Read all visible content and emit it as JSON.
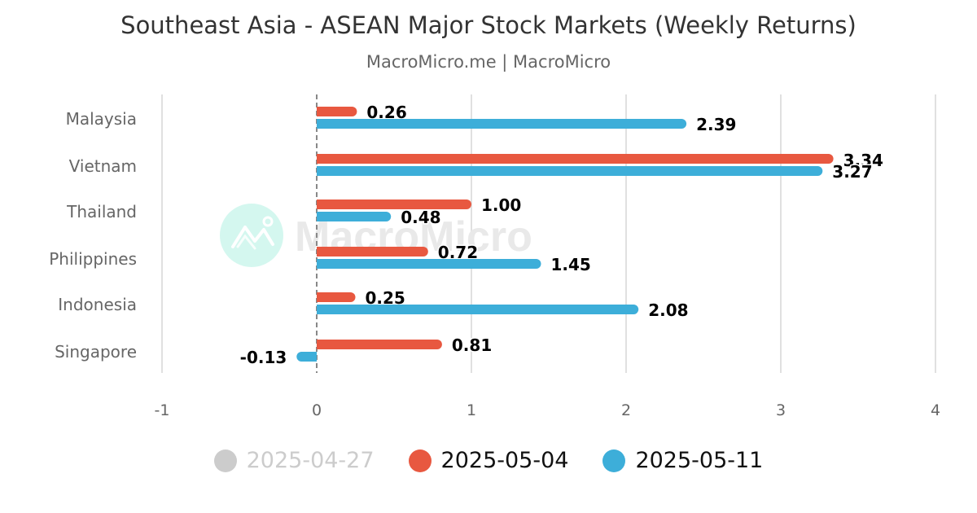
{
  "header": {
    "title": "Southeast Asia - ASEAN Major Stock Markets (Weekly Returns)",
    "subtitle": "MacroMicro.me | MacroMicro"
  },
  "watermark": {
    "text": "MacroMicro"
  },
  "legend": [
    {
      "label": "2025-04-27",
      "color": "#cccccc",
      "text_color": "#cccccc",
      "hidden": true
    },
    {
      "label": "2025-05-04",
      "color": "#e85840",
      "text_color": "#111111",
      "hidden": false
    },
    {
      "label": "2025-05-11",
      "color": "#3daed9",
      "text_color": "#111111",
      "hidden": false
    }
  ],
  "chart_data": {
    "type": "bar",
    "orientation": "horizontal",
    "title": "Southeast Asia - ASEAN Major Stock Markets (Weekly Returns)",
    "subtitle": "MacroMicro.me | MacroMicro",
    "xlabel": "",
    "ylabel": "",
    "categories": [
      "Malaysia",
      "Vietnam",
      "Thailand",
      "Philippines",
      "Indonesia",
      "Singapore"
    ],
    "series": [
      {
        "name": "2025-04-27",
        "color": "#cccccc",
        "visible": false,
        "values": []
      },
      {
        "name": "2025-05-04",
        "color": "#e85840",
        "visible": true,
        "values": [
          0.26,
          3.34,
          1.0,
          0.72,
          0.25,
          0.81
        ]
      },
      {
        "name": "2025-05-11",
        "color": "#3daed9",
        "visible": true,
        "values": [
          2.39,
          3.27,
          0.48,
          1.45,
          2.08,
          -0.13
        ]
      }
    ],
    "xlim": [
      -1,
      4
    ],
    "xticks": [
      "-1",
      "0",
      "1",
      "2",
      "3",
      "4"
    ],
    "grid": true,
    "zero_line": "dashed",
    "legend_position": "bottom"
  }
}
